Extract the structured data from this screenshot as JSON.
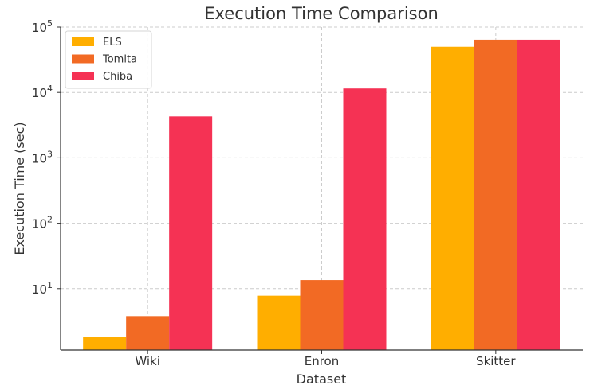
{
  "chart_data": {
    "type": "bar",
    "title": "Execution Time Comparison",
    "xlabel": "Dataset",
    "ylabel": "Execution Time (sec)",
    "yscale": "log",
    "ylim": [
      1.15,
      100000
    ],
    "categories": [
      "Wiki",
      "Enron",
      "Skitter"
    ],
    "series": [
      {
        "name": "ELS",
        "color": "#ffae00",
        "values": [
          1.8,
          7.8,
          50000
        ]
      },
      {
        "name": "Tomita",
        "color": "#f26a24",
        "values": [
          3.8,
          13.5,
          64000
        ]
      },
      {
        "name": "Chiba",
        "color": "#f53254",
        "values": [
          4300,
          11500,
          64000
        ]
      }
    ],
    "y_ticks": [
      {
        "base": "10",
        "exp": "1",
        "value": 10
      },
      {
        "base": "10",
        "exp": "2",
        "value": 100
      },
      {
        "base": "10",
        "exp": "3",
        "value": 1000
      },
      {
        "base": "10",
        "exp": "4",
        "value": 10000
      },
      {
        "base": "10",
        "exp": "5",
        "value": 100000
      }
    ],
    "grid": true,
    "legend_position": "top-left"
  }
}
